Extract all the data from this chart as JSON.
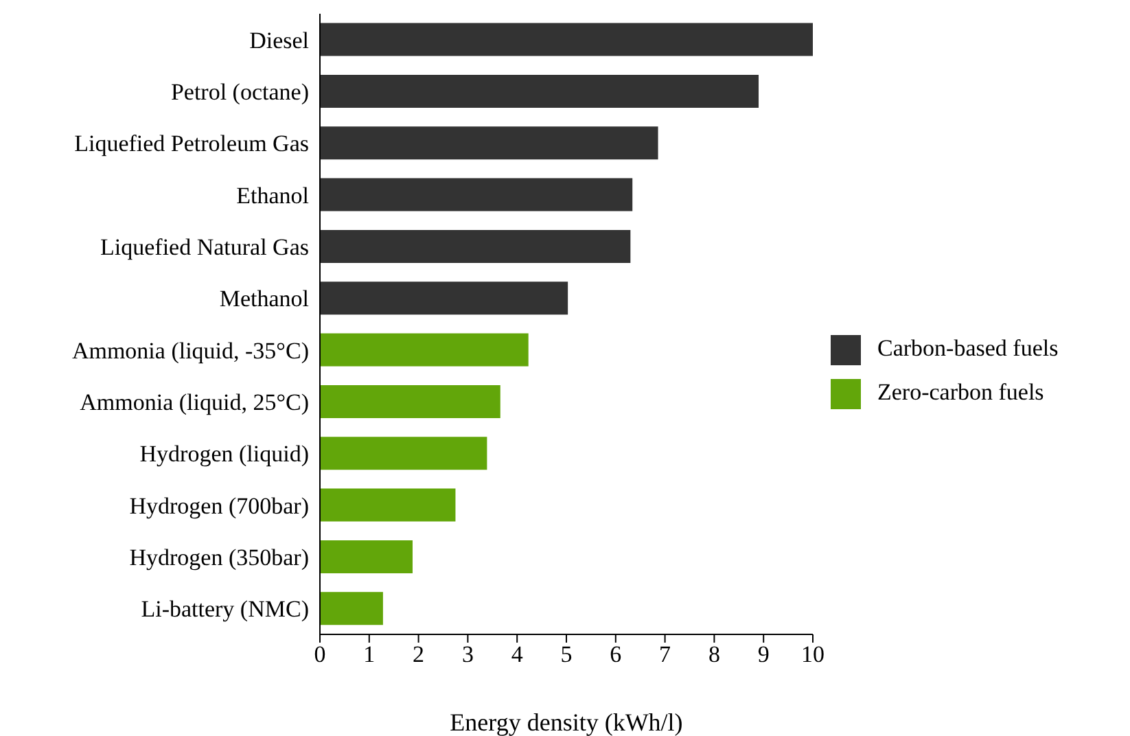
{
  "chart_data": {
    "type": "bar",
    "orientation": "horizontal",
    "stacked": true,
    "xlabel": "Energy density (kWh/l)",
    "categories": [
      "Diesel",
      "Petrol (octane)",
      "Liquefied Petroleum Gas",
      "Ethanol",
      "Liquefied Natural Gas",
      "Methanol",
      "Ammonia (liquid, -35°C)",
      "Ammonia (liquid, 25°C)",
      "Hydrogen (liquid)",
      "Hydrogen (700bar)",
      "Hydrogen (350bar)",
      "Li-battery (NMC)"
    ],
    "series": [
      {
        "name": "Carbon-based fuels",
        "color": "#333333",
        "values": [
          10.0,
          8.9,
          6.86,
          6.34,
          6.3,
          5.03,
          null,
          null,
          null,
          null,
          null,
          null
        ]
      },
      {
        "name": "Zero-carbon fuels",
        "color": "#62a60a",
        "values": [
          null,
          null,
          null,
          null,
          null,
          null,
          4.23,
          3.66,
          3.39,
          2.75,
          1.88,
          1.28
        ]
      }
    ],
    "xlim": [
      0,
      10
    ],
    "xticks": [
      0,
      1,
      2,
      3,
      4,
      5,
      6,
      7,
      8,
      9,
      10
    ],
    "grid": false,
    "legend": "center right"
  }
}
